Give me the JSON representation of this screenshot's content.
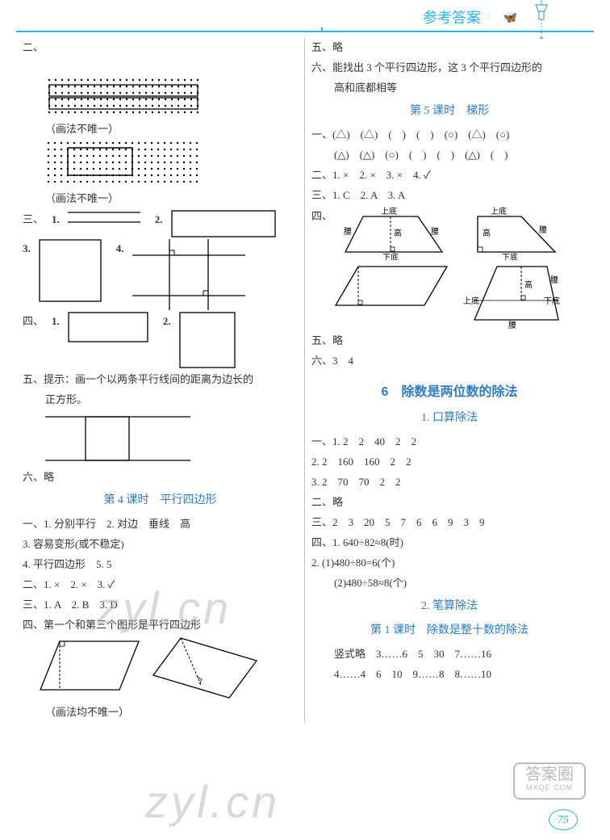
{
  "header": {
    "title": "参考答案"
  },
  "pageNumber": "75",
  "stamp": {
    "ch": "答案圈",
    "en": "MXQE.COM"
  },
  "watermarks": [
    "zyl.cn",
    "zyl.cn"
  ],
  "left": {
    "er": "二、",
    "drawNote": "（画法不唯一）",
    "san": "三、",
    "n1": "1.",
    "n2": "2.",
    "n3": "3.",
    "n4": "4.",
    "si": "四、",
    "wu": "五、提示：画一个以两条平行线间的距离为边长的",
    "wu2": "正方形。",
    "liu": "六、略",
    "head4": "第 4 课时　平行四边形",
    "s4_1_1": "一、1. 分别平行　2. 对边　垂线　高",
    "s4_1_3": "3. 容易变形(或不稳定)",
    "s4_1_4": "4. 平行四边形　5. 5",
    "s4_2": "二、1. ×　2. ×　3. ✓",
    "s4_3": "三、1. A　2. B　3. D",
    "s4_4": "四、第一个和第三个图形是平行四边形",
    "drawNote2": "（画法均不唯一）"
  },
  "right": {
    "wu": "五、略",
    "liu": "六、能找出 3 个平行四边形，这 3 个平行四边形的",
    "liu2": "高和底都相等",
    "head5": "第 5 课时　梯形",
    "s5_1a": "一、(△)　(△)　(　)　(　)　(○)　(△)　(○)",
    "s5_1b": "(△)　(△)　(○)　(　)　(　)　(△)　(　)",
    "s5_2": "二、1. ×　2. ×　3. ×　4. ✓",
    "s5_3": "三、1. C　2. A　3. A",
    "s5_4": "四、",
    "tLabels": {
      "top": "上底",
      "bottom": "下底",
      "waist": "腰",
      "height": "高"
    },
    "s5_5": "五、略",
    "s5_6": "六、3　4",
    "unit6": "6　除数是两位数的除法",
    "sub1": "1. 口算除法",
    "u6_1_1a": "一、1. 2　2　40　2　2",
    "u6_1_1b": "2. 2　160　160　2　2",
    "u6_1_1c": "3. 2　70　70　2　2",
    "u6_1_2": "二、略",
    "u6_1_3": "三、2　3　20　5　7　6　6　9　3　9",
    "u6_1_4a": "四、1. 640÷82≈8(时)",
    "u6_1_4b": "2. (1)480÷80=6(个)",
    "u6_1_4c": "(2)480÷58≈8(个)",
    "sub2": "2. 笔算除法",
    "head2_1": "第 1 课时　除数是整十数的除法",
    "bs_a": "竖式略　3……6　5　30　7……16",
    "bs_b": "4……4　6　10　9……8　8……10"
  }
}
